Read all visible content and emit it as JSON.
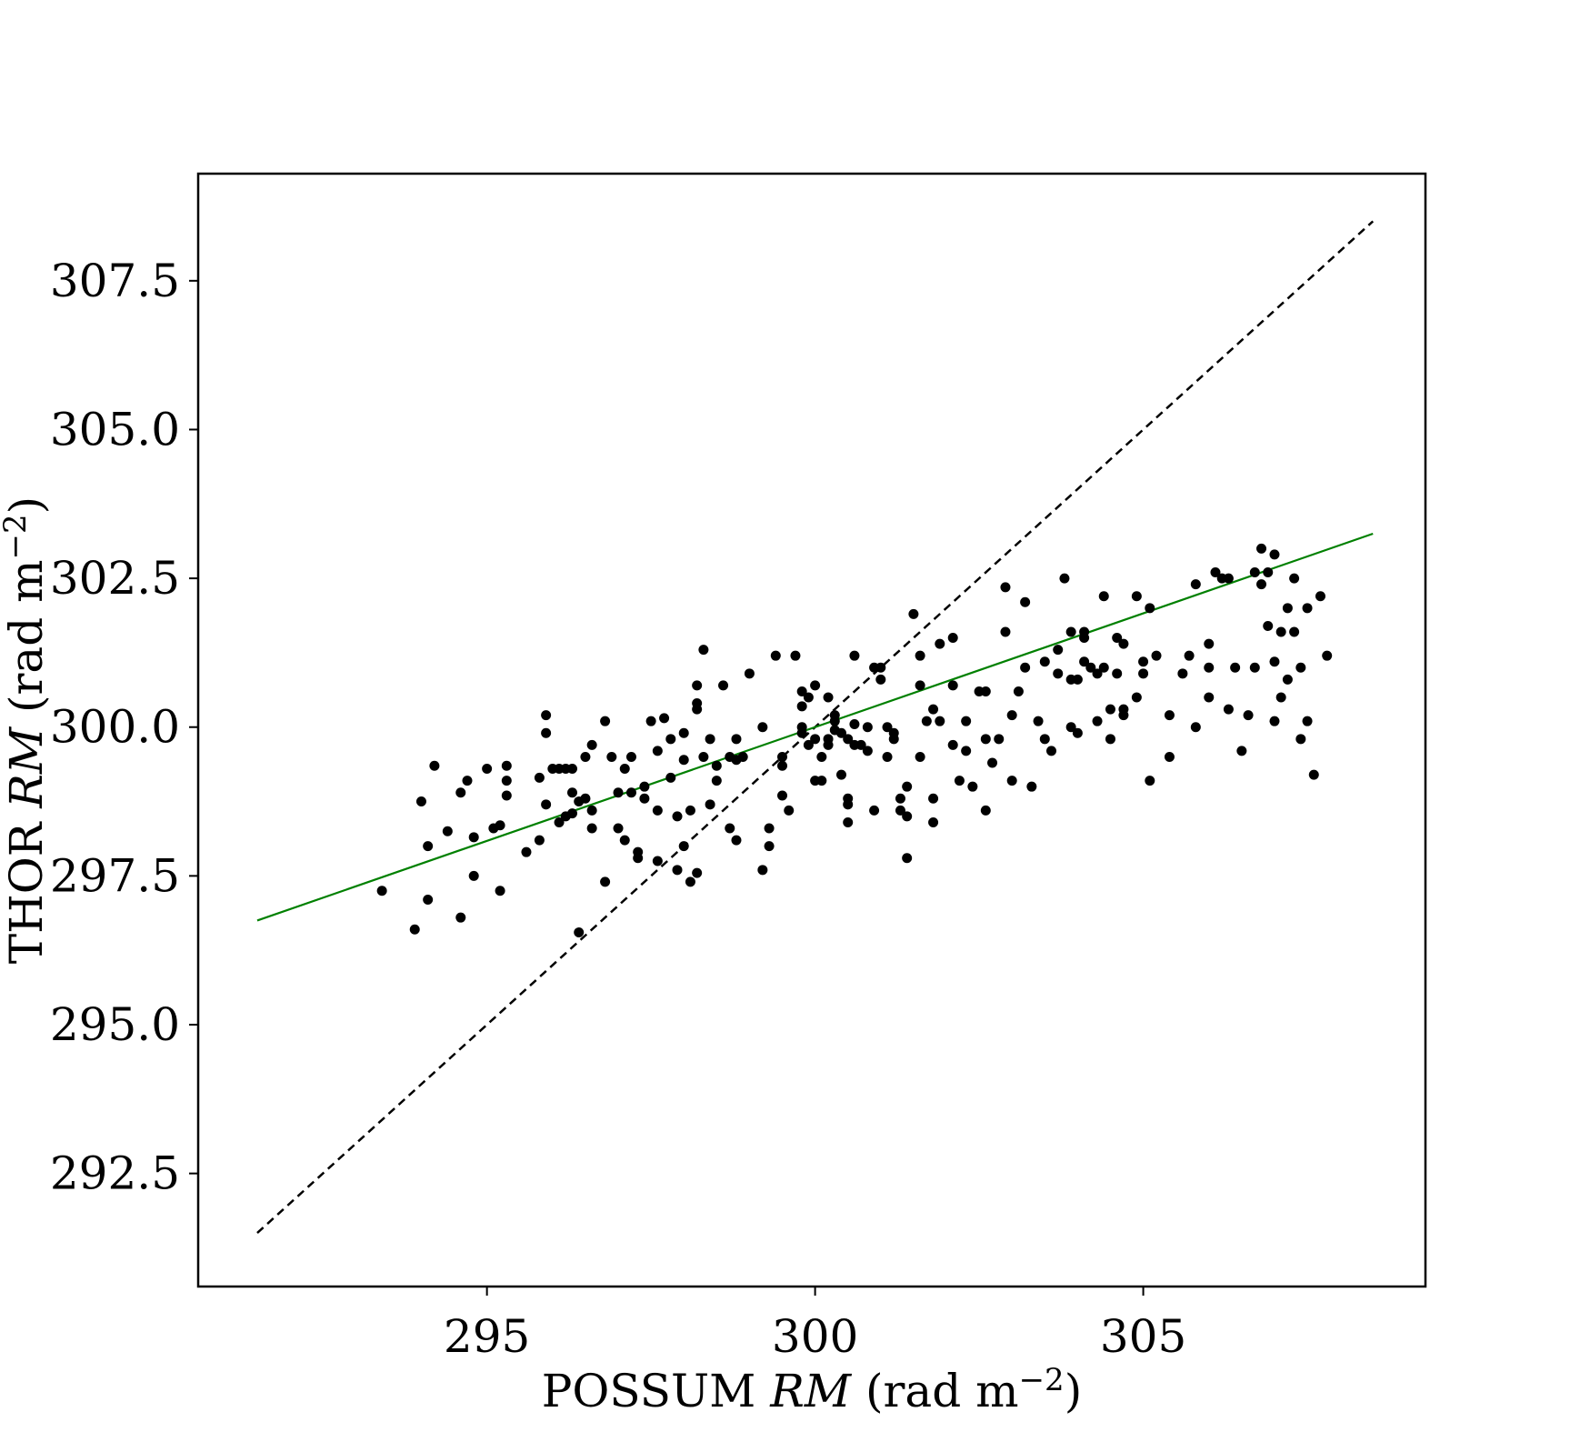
{
  "chart_data": {
    "type": "scatter",
    "title": "",
    "xlabel": {
      "prefix": "POSSUM ",
      "italic": "RM",
      "suffix": " (rad m",
      "exponent": "−2",
      "close": ")"
    },
    "ylabel": {
      "prefix": "THOR ",
      "italic": "RM",
      "suffix": " (rad m",
      "exponent": "−2",
      "close": ")"
    },
    "xlim": [
      290.6,
      309.3
    ],
    "ylim": [
      290.6,
      309.3
    ],
    "xticks": [
      295,
      300,
      305
    ],
    "xtick_labels": [
      "295",
      "300",
      "305"
    ],
    "yticks": [
      292.5,
      295.0,
      297.5,
      300.0,
      302.5,
      305.0,
      307.5
    ],
    "ytick_labels": [
      "292.5",
      "295.0",
      "297.5",
      "300.0",
      "302.5",
      "305.0",
      "307.5"
    ],
    "grid": false,
    "colors": {
      "points": "#000000",
      "fit_line": "#008000",
      "identity_line": "#000000"
    },
    "lines": [
      {
        "style": "dashed",
        "color": "#000000",
        "x": [
          291.5,
          308.5
        ],
        "y": [
          291.5,
          308.5
        ]
      },
      {
        "style": "solid",
        "color": "#008000",
        "x": [
          291.5,
          308.5
        ],
        "y": [
          296.75,
          303.25
        ]
      }
    ],
    "points": [
      [
        293.4,
        297.25
      ],
      [
        293.9,
        296.6
      ],
      [
        294.0,
        298.75
      ],
      [
        294.1,
        298.0
      ],
      [
        294.1,
        297.1
      ],
      [
        294.2,
        299.35
      ],
      [
        294.4,
        298.25
      ],
      [
        294.6,
        296.8
      ],
      [
        294.6,
        298.9
      ],
      [
        294.7,
        299.1
      ],
      [
        294.8,
        298.15
      ],
      [
        294.8,
        297.5
      ],
      [
        295.0,
        299.3
      ],
      [
        295.1,
        298.3
      ],
      [
        295.2,
        298.35
      ],
      [
        295.2,
        297.25
      ],
      [
        295.3,
        299.35
      ],
      [
        295.3,
        299.1
      ],
      [
        295.3,
        298.85
      ],
      [
        295.6,
        297.9
      ],
      [
        295.8,
        298.1
      ],
      [
        295.8,
        299.15
      ],
      [
        295.9,
        300.2
      ],
      [
        295.9,
        299.9
      ],
      [
        295.9,
        298.7
      ],
      [
        296.0,
        299.3
      ],
      [
        296.1,
        299.3
      ],
      [
        296.2,
        299.3
      ],
      [
        296.1,
        298.4
      ],
      [
        296.2,
        298.5
      ],
      [
        296.3,
        299.3
      ],
      [
        296.3,
        298.9
      ],
      [
        296.3,
        298.55
      ],
      [
        296.4,
        298.75
      ],
      [
        296.4,
        296.55
      ],
      [
        296.5,
        299.5
      ],
      [
        296.5,
        298.8
      ],
      [
        296.6,
        299.7
      ],
      [
        296.6,
        298.6
      ],
      [
        296.6,
        298.3
      ],
      [
        296.8,
        300.1
      ],
      [
        296.8,
        297.4
      ],
      [
        296.9,
        299.5
      ],
      [
        297.0,
        298.9
      ],
      [
        297.0,
        298.3
      ],
      [
        297.1,
        299.3
      ],
      [
        297.2,
        299.5
      ],
      [
        297.2,
        298.9
      ],
      [
        297.1,
        298.1
      ],
      [
        297.3,
        297.8
      ],
      [
        297.3,
        297.9
      ],
      [
        297.4,
        299.0
      ],
      [
        297.4,
        298.8
      ],
      [
        297.5,
        300.1
      ],
      [
        297.6,
        299.6
      ],
      [
        297.6,
        298.6
      ],
      [
        297.6,
        297.75
      ],
      [
        297.7,
        300.15
      ],
      [
        297.8,
        299.8
      ],
      [
        297.8,
        299.15
      ],
      [
        297.9,
        298.5
      ],
      [
        297.9,
        297.6
      ],
      [
        298.0,
        299.9
      ],
      [
        298.0,
        299.45
      ],
      [
        298.0,
        298.0
      ],
      [
        298.1,
        298.6
      ],
      [
        298.1,
        297.4
      ],
      [
        298.2,
        300.4
      ],
      [
        298.2,
        300.3
      ],
      [
        298.2,
        300.7
      ],
      [
        298.3,
        301.3
      ],
      [
        298.3,
        299.5
      ],
      [
        298.2,
        297.55
      ],
      [
        298.4,
        298.7
      ],
      [
        298.4,
        299.8
      ],
      [
        298.5,
        299.1
      ],
      [
        298.5,
        299.35
      ],
      [
        298.6,
        300.7
      ],
      [
        298.7,
        299.5
      ],
      [
        298.7,
        298.3
      ],
      [
        298.8,
        299.8
      ],
      [
        298.8,
        299.45
      ],
      [
        298.8,
        298.1
      ],
      [
        298.9,
        299.5
      ],
      [
        299.0,
        300.9
      ],
      [
        299.2,
        300.0
      ],
      [
        299.2,
        297.6
      ],
      [
        299.3,
        298.3
      ],
      [
        299.3,
        298.0
      ],
      [
        299.4,
        301.2
      ],
      [
        299.5,
        299.5
      ],
      [
        299.5,
        299.35
      ],
      [
        299.5,
        298.85
      ],
      [
        299.6,
        298.6
      ],
      [
        299.7,
        301.2
      ],
      [
        299.8,
        300.0
      ],
      [
        299.8,
        299.9
      ],
      [
        299.8,
        300.6
      ],
      [
        299.8,
        300.35
      ],
      [
        299.9,
        300.5
      ],
      [
        299.9,
        299.7
      ],
      [
        300.0,
        300.7
      ],
      [
        300.0,
        299.8
      ],
      [
        300.0,
        299.1
      ],
      [
        300.1,
        299.5
      ],
      [
        300.1,
        299.1
      ],
      [
        300.2,
        299.7
      ],
      [
        300.2,
        299.8
      ],
      [
        300.2,
        300.5
      ],
      [
        300.3,
        300.2
      ],
      [
        300.3,
        300.1
      ],
      [
        300.3,
        299.95
      ],
      [
        300.4,
        299.9
      ],
      [
        300.4,
        299.2
      ],
      [
        300.5,
        298.4
      ],
      [
        300.5,
        298.8
      ],
      [
        300.5,
        298.7
      ],
      [
        300.5,
        299.8
      ],
      [
        300.6,
        301.2
      ],
      [
        300.6,
        300.05
      ],
      [
        300.6,
        299.7
      ],
      [
        300.7,
        299.7
      ],
      [
        300.8,
        300.0
      ],
      [
        300.8,
        299.6
      ],
      [
        300.9,
        298.6
      ],
      [
        300.9,
        301.0
      ],
      [
        301.0,
        301.0
      ],
      [
        301.0,
        300.8
      ],
      [
        301.1,
        300.0
      ],
      [
        301.1,
        299.5
      ],
      [
        301.2,
        299.9
      ],
      [
        301.2,
        299.8
      ],
      [
        301.3,
        298.6
      ],
      [
        301.3,
        298.8
      ],
      [
        301.4,
        298.5
      ],
      [
        301.4,
        299.0
      ],
      [
        301.4,
        297.8
      ],
      [
        301.5,
        301.9
      ],
      [
        301.6,
        301.2
      ],
      [
        301.6,
        300.7
      ],
      [
        301.6,
        299.5
      ],
      [
        301.7,
        300.1
      ],
      [
        301.8,
        300.3
      ],
      [
        301.8,
        298.8
      ],
      [
        301.8,
        298.4
      ],
      [
        301.9,
        301.4
      ],
      [
        301.9,
        300.1
      ],
      [
        302.1,
        301.5
      ],
      [
        302.1,
        300.7
      ],
      [
        302.1,
        299.7
      ],
      [
        302.2,
        299.1
      ],
      [
        302.3,
        300.1
      ],
      [
        302.3,
        299.6
      ],
      [
        302.4,
        299.0
      ],
      [
        302.5,
        300.6
      ],
      [
        302.6,
        300.6
      ],
      [
        302.6,
        299.8
      ],
      [
        302.6,
        298.6
      ],
      [
        302.7,
        299.4
      ],
      [
        302.8,
        299.8
      ],
      [
        302.9,
        302.35
      ],
      [
        302.9,
        301.6
      ],
      [
        303.0,
        300.2
      ],
      [
        303.0,
        299.1
      ],
      [
        303.1,
        300.6
      ],
      [
        303.2,
        301.0
      ],
      [
        303.2,
        302.1
      ],
      [
        303.3,
        299.0
      ],
      [
        303.4,
        300.1
      ],
      [
        303.5,
        301.1
      ],
      [
        303.5,
        299.8
      ],
      [
        303.6,
        299.6
      ],
      [
        303.7,
        300.9
      ],
      [
        303.7,
        301.3
      ],
      [
        303.8,
        302.5
      ],
      [
        303.9,
        301.6
      ],
      [
        303.9,
        300.8
      ],
      [
        303.9,
        300.0
      ],
      [
        304.0,
        299.9
      ],
      [
        304.0,
        300.8
      ],
      [
        304.1,
        301.6
      ],
      [
        304.1,
        301.5
      ],
      [
        304.1,
        301.1
      ],
      [
        304.2,
        301.0
      ],
      [
        304.3,
        300.1
      ],
      [
        304.3,
        300.9
      ],
      [
        304.4,
        301.0
      ],
      [
        304.4,
        302.2
      ],
      [
        304.5,
        300.3
      ],
      [
        304.5,
        299.8
      ],
      [
        304.6,
        300.9
      ],
      [
        304.6,
        301.5
      ],
      [
        304.7,
        300.2
      ],
      [
        304.7,
        300.3
      ],
      [
        304.7,
        301.4
      ],
      [
        304.9,
        302.2
      ],
      [
        304.9,
        300.5
      ],
      [
        305.0,
        301.1
      ],
      [
        305.0,
        300.9
      ],
      [
        305.1,
        299.1
      ],
      [
        305.1,
        302.0
      ],
      [
        305.2,
        301.2
      ],
      [
        305.4,
        300.2
      ],
      [
        305.4,
        299.5
      ],
      [
        305.6,
        300.9
      ],
      [
        305.7,
        301.2
      ],
      [
        305.8,
        302.4
      ],
      [
        305.8,
        300.0
      ],
      [
        306.0,
        301.0
      ],
      [
        306.0,
        301.4
      ],
      [
        306.0,
        300.5
      ],
      [
        306.1,
        302.6
      ],
      [
        306.2,
        302.5
      ],
      [
        306.3,
        300.3
      ],
      [
        306.3,
        302.5
      ],
      [
        306.4,
        301.0
      ],
      [
        306.5,
        299.6
      ],
      [
        306.6,
        300.2
      ],
      [
        306.7,
        301.0
      ],
      [
        306.7,
        302.6
      ],
      [
        306.8,
        303.0
      ],
      [
        306.8,
        302.4
      ],
      [
        306.9,
        302.6
      ],
      [
        306.9,
        301.7
      ],
      [
        307.0,
        302.9
      ],
      [
        307.0,
        301.1
      ],
      [
        307.0,
        300.1
      ],
      [
        307.1,
        300.5
      ],
      [
        307.1,
        301.6
      ],
      [
        307.2,
        300.8
      ],
      [
        307.2,
        302.0
      ],
      [
        307.3,
        301.6
      ],
      [
        307.3,
        302.5
      ],
      [
        307.4,
        301.0
      ],
      [
        307.4,
        299.8
      ],
      [
        307.5,
        302.0
      ],
      [
        307.5,
        300.1
      ],
      [
        307.6,
        299.2
      ],
      [
        307.7,
        302.2
      ],
      [
        307.8,
        301.2
      ]
    ]
  }
}
